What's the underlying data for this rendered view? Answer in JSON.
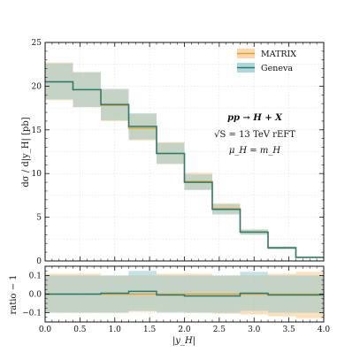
{
  "chart_data": [
    {
      "type": "line",
      "style": "step-histogram-with-uncertainty-bands",
      "bin_edges": [
        0.0,
        0.4,
        0.8,
        1.2,
        1.6,
        2.0,
        2.4,
        2.8,
        3.2,
        3.6,
        4.0
      ],
      "series": [
        {
          "name": "MATRIX",
          "color": "#f29b26",
          "band_color": "#f6c98a",
          "values": [
            20.5,
            19.6,
            17.8,
            15.2,
            12.3,
            9.1,
            6.0,
            3.3,
            1.5,
            0.4
          ],
          "band_low": [
            18.4,
            17.6,
            16.0,
            13.8,
            11.1,
            8.2,
            5.4,
            3.0,
            1.35,
            0.36
          ],
          "band_high": [
            22.7,
            21.6,
            19.6,
            16.8,
            13.6,
            10.1,
            6.6,
            3.6,
            1.65,
            0.44
          ]
        },
        {
          "name": "Geneva",
          "color": "#1f7f7a",
          "band_color": "#8fc6c9",
          "values": [
            20.5,
            19.6,
            17.9,
            15.4,
            12.3,
            9.0,
            5.9,
            3.3,
            1.5,
            0.4
          ],
          "band_low": [
            18.5,
            17.6,
            16.1,
            13.9,
            11.1,
            8.1,
            5.3,
            3.0,
            1.35,
            0.36
          ],
          "band_high": [
            22.6,
            21.6,
            19.7,
            16.9,
            13.5,
            9.9,
            6.5,
            3.6,
            1.65,
            0.44
          ]
        }
      ],
      "xlabel": "|y_H|",
      "ylabel": "dσ / d|y_H|  [pb]",
      "xlim": [
        0.0,
        4.0
      ],
      "ylim": [
        0,
        25
      ],
      "yticks": [
        "0",
        "5",
        "10",
        "15",
        "20",
        "25"
      ],
      "grid": true,
      "legend": "top-right",
      "annotation": [
        "pp → H + X",
        "√S = 13 TeV    rEFT",
        "μ_H = m_H"
      ]
    },
    {
      "type": "line",
      "style": "ratio-panel",
      "bin_edges": [
        0.0,
        0.4,
        0.8,
        1.2,
        1.6,
        2.0,
        2.4,
        2.8,
        3.2,
        3.6,
        4.0
      ],
      "series": [
        {
          "name": "MATRIX",
          "color": "#f29b26",
          "band_color": "#f6c98a",
          "values": [
            0.0,
            0.0,
            0.0,
            0.0,
            0.0,
            0.0,
            0.0,
            0.0,
            0.0,
            0.0
          ],
          "band_low": [
            -0.1,
            -0.1,
            -0.1,
            -0.095,
            -0.095,
            -0.1,
            -0.105,
            -0.11,
            -0.12,
            -0.13
          ],
          "band_high": [
            0.11,
            0.11,
            0.1,
            0.1,
            0.11,
            0.11,
            0.1,
            0.1,
            0.11,
            0.12
          ]
        },
        {
          "name": "Geneva",
          "color": "#1f7f7a",
          "band_color": "#8fc6c9",
          "values": [
            0.0,
            0.0,
            0.005,
            0.015,
            -0.005,
            -0.01,
            -0.01,
            0.005,
            -0.005,
            -0.005
          ],
          "band_low": [
            -0.1,
            -0.1,
            -0.1,
            -0.09,
            -0.1,
            -0.1,
            -0.1,
            -0.09,
            -0.1,
            -0.1
          ],
          "band_high": [
            0.1,
            0.1,
            0.1,
            0.125,
            0.1,
            0.1,
            0.1,
            0.12,
            0.1,
            0.1
          ]
        }
      ],
      "xlabel": "|y_H|",
      "ylabel": "ratio − 1",
      "xlim": [
        0.0,
        4.0
      ],
      "ylim": [
        -0.15,
        0.15
      ],
      "yticks": [
        "−0.1",
        "0.0",
        "0.1"
      ],
      "xticks": [
        "0.0",
        "0.5",
        "1.0",
        "1.5",
        "2.0",
        "2.5",
        "3.0",
        "3.5",
        "4.0"
      ],
      "grid": true
    }
  ]
}
